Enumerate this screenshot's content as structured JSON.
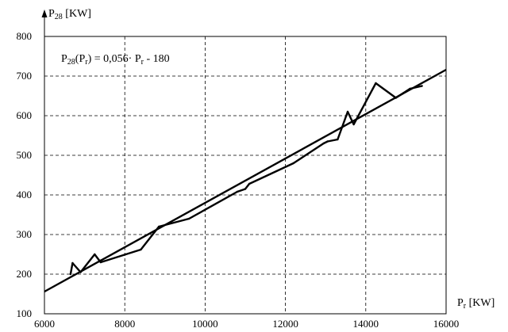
{
  "chart_data": {
    "type": "line",
    "xlabel_main": "P",
    "xlabel_sub": "r",
    "xlabel_unit": " [KW]",
    "ylabel_main": "P",
    "ylabel_sub": "28",
    "ylabel_unit": " [KW]",
    "equation": {
      "p1": "P",
      "s1": "28",
      "p2": "(P",
      "s2": "r",
      "p3": ") = 0,056· P",
      "s3": "r",
      "p4": " - 180"
    },
    "xlim": [
      6000,
      16000
    ],
    "ylim": [
      100,
      800
    ],
    "xticks": [
      6000,
      8000,
      10000,
      12000,
      14000,
      16000
    ],
    "yticks": [
      100,
      200,
      300,
      400,
      500,
      600,
      700,
      800
    ],
    "grid": true,
    "series": [
      {
        "x": [
          6650,
          6700,
          6900,
          7250,
          7400,
          8400,
          8850,
          9600,
          10800,
          11000,
          11100,
          12200,
          12950,
          13050,
          13300,
          13550,
          13700,
          14250,
          14750,
          15100,
          15400
        ],
        "y": [
          200,
          228,
          205,
          250,
          230,
          262,
          320,
          340,
          408,
          415,
          428,
          480,
          530,
          535,
          540,
          610,
          578,
          682,
          645,
          668,
          675
        ]
      }
    ],
    "fit_line": {
      "x": [
        6000,
        16000
      ],
      "y": [
        156,
        716
      ]
    }
  }
}
